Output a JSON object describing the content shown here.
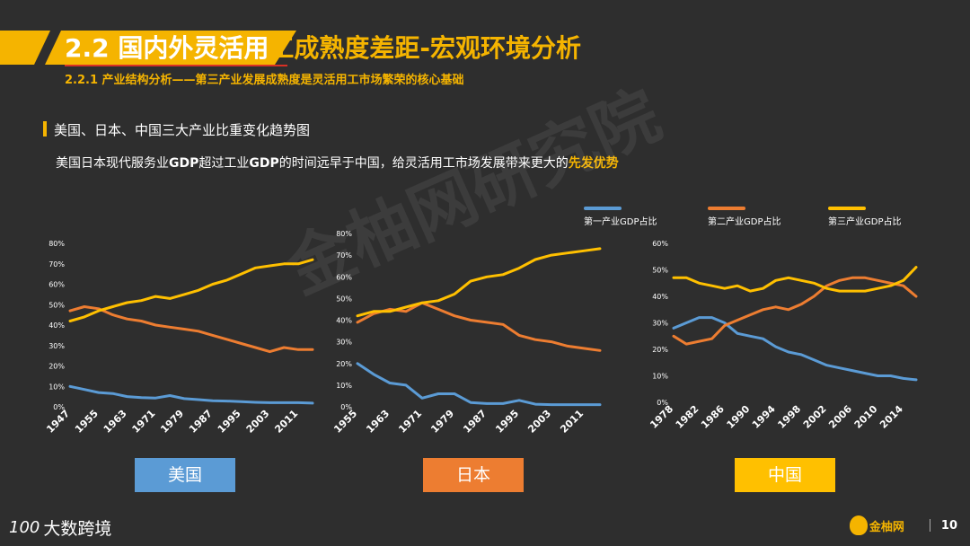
{
  "header": {
    "title_prefix": "2.2 国内外灵活用",
    "title_suffix": "工成熟度差距-宏观环境分析",
    "subtitle": "2.2.1 产业结构分析——第三产业发展成熟度是灵活用工市场繁荣的核心基础",
    "section_title": "美国、日本、中国三大产业比重变化趋势图",
    "description_parts": {
      "p1": "美国日本现代服务业",
      "p2": "GDP",
      "p3": "超过工业",
      "p4": "GDP",
      "p5": "的时间远早于中国，给灵活用工市场发展带来更大的",
      "p6": "先发优势"
    }
  },
  "watermark": "金柚网研究院",
  "legend": [
    {
      "label": "第一产业GDP占比",
      "color": "#5b9bd5"
    },
    {
      "label": "第二产业GDP占比",
      "color": "#ed7d31"
    },
    {
      "label": "第三产业GDP占比",
      "color": "#ffc000"
    }
  ],
  "colors": {
    "primary": "#5b9bd5",
    "secondary": "#ed7d31",
    "tertiary": "#ffc000",
    "accent": "#f5b400"
  },
  "countries": [
    {
      "label": "美国",
      "color": "#5b9bd5"
    },
    {
      "label": "日本",
      "color": "#ed7d31"
    },
    {
      "label": "中国",
      "color": "#ffc000"
    }
  ],
  "chart_data": [
    {
      "type": "line",
      "country": "美国",
      "ylim": [
        0,
        80
      ],
      "yticks": [
        "0%",
        "10%",
        "20%",
        "30%",
        "40%",
        "50%",
        "60%",
        "70%",
        "80%"
      ],
      "xlim": [
        1947,
        2015
      ],
      "xticks": [
        "1947",
        "1955",
        "1963",
        "1971",
        "1979",
        "1987",
        "1995",
        "2003",
        "2011"
      ],
      "series": [
        {
          "key": "primary",
          "x": [
            1947,
            1951,
            1955,
            1959,
            1963,
            1967,
            1971,
            1975,
            1979,
            1983,
            1987,
            1991,
            1995,
            1999,
            2003,
            2007,
            2011,
            2015
          ],
          "values": [
            10,
            8.5,
            7,
            6.5,
            5,
            4.5,
            4.3,
            5.5,
            4,
            3.5,
            3,
            2.8,
            2.5,
            2.2,
            2,
            2,
            2,
            1.8
          ]
        },
        {
          "key": "secondary",
          "x": [
            1947,
            1951,
            1955,
            1959,
            1963,
            1967,
            1971,
            1975,
            1979,
            1983,
            1987,
            1991,
            1995,
            1999,
            2003,
            2007,
            2011,
            2015
          ],
          "values": [
            47,
            49,
            48,
            45,
            43,
            42,
            40,
            39,
            38,
            37,
            35,
            33,
            31,
            29,
            27,
            29,
            28,
            28
          ]
        },
        {
          "key": "tertiary",
          "x": [
            1947,
            1951,
            1955,
            1959,
            1963,
            1967,
            1971,
            1975,
            1979,
            1983,
            1987,
            1991,
            1995,
            1999,
            2003,
            2007,
            2011,
            2015
          ],
          "values": [
            42,
            44,
            47,
            49,
            51,
            52,
            54,
            53,
            55,
            57,
            60,
            62,
            65,
            68,
            69,
            70,
            70,
            72
          ]
        }
      ]
    },
    {
      "type": "line",
      "country": "日本",
      "ylim": [
        0,
        80
      ],
      "yticks": [
        "0%",
        "10%",
        "20%",
        "30%",
        "40%",
        "50%",
        "60%",
        "70%",
        "80%"
      ],
      "xlim": [
        1955,
        2015
      ],
      "xticks": [
        "1955",
        "1963",
        "1971",
        "1979",
        "1987",
        "1995",
        "2003",
        "2011"
      ],
      "series": [
        {
          "key": "primary",
          "x": [
            1955,
            1959,
            1963,
            1967,
            1971,
            1975,
            1979,
            1983,
            1987,
            1991,
            1995,
            1999,
            2003,
            2007,
            2011,
            2015
          ],
          "values": [
            20,
            15,
            11,
            10,
            4,
            6,
            6,
            2,
            1.5,
            1.5,
            3,
            1.2,
            1,
            1,
            1,
            1
          ]
        },
        {
          "key": "secondary",
          "x": [
            1955,
            1959,
            1963,
            1967,
            1971,
            1975,
            1979,
            1983,
            1987,
            1991,
            1995,
            1999,
            2003,
            2007,
            2011,
            2015
          ],
          "values": [
            39,
            43,
            45,
            44,
            48,
            45,
            42,
            40,
            39,
            38,
            33,
            31,
            30,
            28,
            27,
            26
          ]
        },
        {
          "key": "tertiary",
          "x": [
            1955,
            1959,
            1963,
            1967,
            1971,
            1975,
            1979,
            1983,
            1987,
            1991,
            1995,
            1999,
            2003,
            2007,
            2011,
            2015
          ],
          "values": [
            42,
            44,
            44,
            46,
            48,
            49,
            52,
            58,
            60,
            61,
            64,
            68,
            70,
            71,
            72,
            73
          ]
        }
      ]
    },
    {
      "type": "line",
      "country": "中国",
      "ylim": [
        0,
        60
      ],
      "yticks": [
        "0%",
        "10%",
        "20%",
        "30%",
        "40%",
        "50%",
        "60%"
      ],
      "xlim": [
        1978,
        2016
      ],
      "xticks": [
        "1978",
        "1982",
        "1986",
        "1990",
        "1994",
        "1998",
        "2002",
        "2006",
        "2010",
        "2014"
      ],
      "series": [
        {
          "key": "primary",
          "x": [
            1978,
            1980,
            1982,
            1984,
            1986,
            1988,
            1990,
            1992,
            1994,
            1996,
            1998,
            2000,
            2002,
            2004,
            2006,
            2008,
            2010,
            2012,
            2014,
            2016
          ],
          "values": [
            28,
            30,
            32,
            32,
            30,
            26,
            25,
            24,
            21,
            19,
            18,
            16,
            14,
            13,
            12,
            11,
            10,
            10,
            9,
            8.5
          ]
        },
        {
          "key": "secondary",
          "x": [
            1978,
            1980,
            1982,
            1984,
            1986,
            1988,
            1990,
            1992,
            1994,
            1996,
            1998,
            2000,
            2002,
            2004,
            2006,
            2008,
            2010,
            2012,
            2014,
            2016
          ],
          "values": [
            25,
            22,
            23,
            24,
            29,
            31,
            33,
            35,
            36,
            35,
            37,
            40,
            44,
            46,
            47,
            47,
            46,
            45,
            44,
            40
          ]
        },
        {
          "key": "tertiary",
          "x": [
            1978,
            1980,
            1982,
            1984,
            1986,
            1988,
            1990,
            1992,
            1994,
            1996,
            1998,
            2000,
            2002,
            2004,
            2006,
            2008,
            2010,
            2012,
            2014,
            2016
          ],
          "values": [
            47,
            47,
            45,
            44,
            43,
            44,
            42,
            43,
            46,
            47,
            46,
            45,
            43,
            42,
            42,
            42,
            43,
            44,
            46,
            51
          ]
        }
      ]
    }
  ],
  "footer": {
    "left_mark": "100",
    "left_text": "大数跨境",
    "brand": "金柚网",
    "page_number": "10"
  }
}
